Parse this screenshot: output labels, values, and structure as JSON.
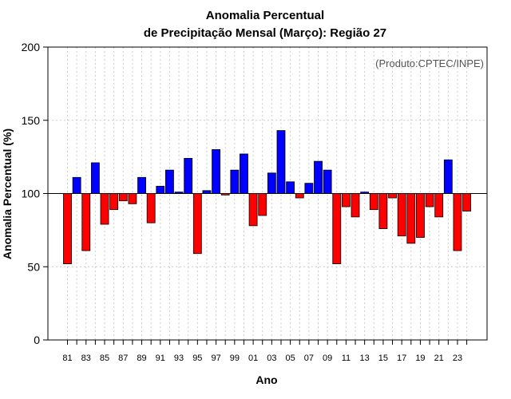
{
  "chart_data": {
    "type": "bar",
    "title": "Anomalia Percentual",
    "subtitle": "de Precipitação Mensal (Março): Região 27",
    "credit": "(Produto:CPTEC/INPE)",
    "xlabel": "Ano",
    "ylabel": "Anomalia Percentual (%)",
    "ylim": [
      0,
      200
    ],
    "yticks": [
      0,
      50,
      100,
      150,
      200
    ],
    "baseline": 100,
    "grid": true,
    "colors": {
      "above": "#0000ff",
      "below": "#ff0000",
      "outline": "#000000",
      "grid": "#cccccc"
    },
    "categories": [
      "1981",
      "1982",
      "1983",
      "1984",
      "1985",
      "1986",
      "1987",
      "1988",
      "1989",
      "1990",
      "1991",
      "1992",
      "1993",
      "1994",
      "1995",
      "1996",
      "1997",
      "1998",
      "1999",
      "2000",
      "2001",
      "2002",
      "2003",
      "2004",
      "2005",
      "2006",
      "2007",
      "2008",
      "2009",
      "2010",
      "2011",
      "2012",
      "2013",
      "2014",
      "2015",
      "2016",
      "2017",
      "2018",
      "2019",
      "2020",
      "2021",
      "2022",
      "2023",
      "2024"
    ],
    "tick_labels": [
      "81",
      "",
      "83",
      "",
      "85",
      "",
      "87",
      "",
      "89",
      "",
      "91",
      "",
      "93",
      "",
      "95",
      "",
      "97",
      "",
      "99",
      "",
      "01",
      "",
      "03",
      "",
      "05",
      "",
      "07",
      "",
      "09",
      "",
      "11",
      "",
      "13",
      "",
      "15",
      "",
      "17",
      "",
      "19",
      "",
      "21",
      "",
      "23",
      ""
    ],
    "values": [
      52,
      111,
      61,
      121,
      79,
      89,
      95,
      93,
      111,
      80,
      105,
      116,
      101,
      124,
      59,
      102,
      130,
      99,
      116,
      127,
      78,
      85,
      114,
      143,
      108,
      97,
      107,
      122,
      116,
      52,
      91,
      84,
      101,
      89,
      76,
      97,
      71,
      66,
      70,
      91,
      84,
      123,
      61,
      88
    ]
  }
}
